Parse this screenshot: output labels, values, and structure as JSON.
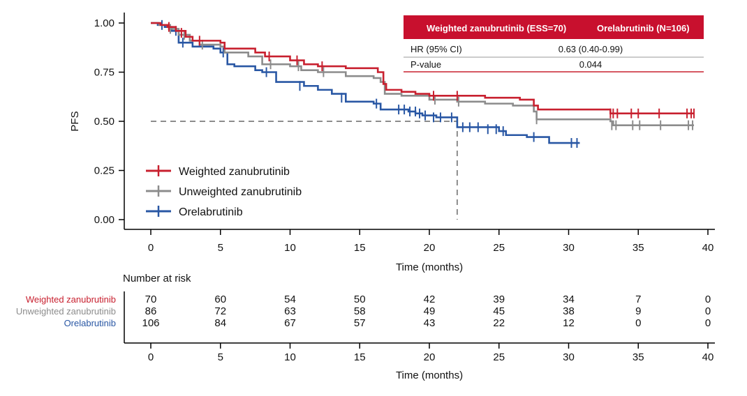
{
  "chart_data": {
    "type": "line",
    "subtype": "kaplan-meier",
    "ylabel": "PFS",
    "xlabel": "Time (months)",
    "xlim": [
      0,
      40
    ],
    "ylim": [
      0,
      1
    ],
    "x_ticks": [
      "0",
      "5",
      "10",
      "15",
      "20",
      "25",
      "30",
      "35",
      "40"
    ],
    "y_ticks": [
      "0.00",
      "0.25",
      "0.50",
      "0.75",
      "1.00"
    ],
    "median_line": {
      "y": 0.5,
      "x": 22.0
    },
    "legend": {
      "placement": "bottom-left"
    },
    "series": [
      {
        "name": "Weighted zanubrutinib",
        "color": "#c8202f",
        "steps": [
          [
            0,
            1.0
          ],
          [
            0.7,
            0.99
          ],
          [
            1.2,
            0.98
          ],
          [
            1.8,
            0.96
          ],
          [
            2.5,
            0.93
          ],
          [
            3,
            0.91
          ],
          [
            5,
            0.9
          ],
          [
            5.3,
            0.87
          ],
          [
            7.5,
            0.85
          ],
          [
            8.2,
            0.83
          ],
          [
            10,
            0.81
          ],
          [
            11,
            0.79
          ],
          [
            12,
            0.78
          ],
          [
            14,
            0.77
          ],
          [
            16.3,
            0.75
          ],
          [
            16.7,
            0.69
          ],
          [
            16.9,
            0.66
          ],
          [
            18,
            0.65
          ],
          [
            19,
            0.64
          ],
          [
            20,
            0.63
          ],
          [
            21.5,
            0.63
          ],
          [
            24,
            0.62
          ],
          [
            26.5,
            0.61
          ],
          [
            27.5,
            0.58
          ],
          [
            27.8,
            0.56
          ],
          [
            30,
            0.56
          ],
          [
            33,
            0.54
          ],
          [
            35,
            0.54
          ],
          [
            38,
            0.54
          ],
          [
            39,
            0.54
          ]
        ],
        "censors": [
          [
            1.3,
            0.98
          ],
          [
            2.2,
            0.95
          ],
          [
            3.5,
            0.91
          ],
          [
            8.5,
            0.83
          ],
          [
            10.5,
            0.81
          ],
          [
            12.3,
            0.78
          ],
          [
            20.3,
            0.63
          ],
          [
            22,
            0.63
          ],
          [
            33,
            0.54
          ],
          [
            33.2,
            0.54
          ],
          [
            33.5,
            0.54
          ],
          [
            34.5,
            0.54
          ],
          [
            35,
            0.54
          ],
          [
            36.5,
            0.54
          ],
          [
            38.5,
            0.54
          ],
          [
            38.8,
            0.54
          ],
          [
            39,
            0.54
          ]
        ],
        "risk": [
          "70",
          "60",
          "54",
          "50",
          "42",
          "39",
          "34",
          "7",
          "0"
        ]
      },
      {
        "name": "Unweighted zanubrutinib",
        "color": "#8c8c8c",
        "steps": [
          [
            0,
            1.0
          ],
          [
            0.6,
            0.99
          ],
          [
            1.3,
            0.97
          ],
          [
            2,
            0.94
          ],
          [
            2.8,
            0.91
          ],
          [
            3.5,
            0.89
          ],
          [
            5,
            0.88
          ],
          [
            5.3,
            0.85
          ],
          [
            7,
            0.83
          ],
          [
            8,
            0.79
          ],
          [
            10,
            0.78
          ],
          [
            10.8,
            0.76
          ],
          [
            12,
            0.75
          ],
          [
            14,
            0.73
          ],
          [
            16,
            0.72
          ],
          [
            16.5,
            0.7
          ],
          [
            16.8,
            0.64
          ],
          [
            18,
            0.63
          ],
          [
            20,
            0.61
          ],
          [
            22,
            0.6
          ],
          [
            24,
            0.59
          ],
          [
            26,
            0.58
          ],
          [
            27.5,
            0.55
          ],
          [
            27.7,
            0.51
          ],
          [
            30,
            0.51
          ],
          [
            33,
            0.5
          ],
          [
            33.2,
            0.48
          ],
          [
            35,
            0.48
          ],
          [
            39,
            0.48
          ]
        ],
        "censors": [
          [
            1.4,
            0.97
          ],
          [
            2.4,
            0.94
          ],
          [
            3.7,
            0.89
          ],
          [
            8.6,
            0.79
          ],
          [
            10.6,
            0.78
          ],
          [
            12.4,
            0.75
          ],
          [
            20.4,
            0.61
          ],
          [
            22.1,
            0.6
          ],
          [
            27.7,
            0.51
          ],
          [
            33.1,
            0.48
          ],
          [
            33.4,
            0.48
          ],
          [
            34.6,
            0.48
          ],
          [
            35.1,
            0.48
          ],
          [
            36.6,
            0.48
          ],
          [
            38.6,
            0.48
          ],
          [
            38.9,
            0.48
          ]
        ],
        "risk": [
          "86",
          "72",
          "63",
          "58",
          "49",
          "45",
          "38",
          "9",
          "0"
        ]
      },
      {
        "name": "Orelabrutinib",
        "color": "#2957a4",
        "steps": [
          [
            0,
            1.0
          ],
          [
            0.5,
            0.99
          ],
          [
            1,
            0.98
          ],
          [
            1.5,
            0.96
          ],
          [
            2,
            0.9
          ],
          [
            3,
            0.88
          ],
          [
            4.5,
            0.87
          ],
          [
            5,
            0.85
          ],
          [
            5.5,
            0.79
          ],
          [
            6,
            0.78
          ],
          [
            7.5,
            0.76
          ],
          [
            8,
            0.75
          ],
          [
            9,
            0.7
          ],
          [
            11,
            0.68
          ],
          [
            12,
            0.66
          ],
          [
            13,
            0.64
          ],
          [
            14,
            0.6
          ],
          [
            15,
            0.6
          ],
          [
            16,
            0.59
          ],
          [
            16.5,
            0.56
          ],
          [
            18.5,
            0.55
          ],
          [
            19,
            0.54
          ],
          [
            19.5,
            0.53
          ],
          [
            20.5,
            0.52
          ],
          [
            21,
            0.52
          ],
          [
            22,
            0.47
          ],
          [
            25,
            0.45
          ],
          [
            25.5,
            0.43
          ],
          [
            27,
            0.42
          ],
          [
            28.5,
            0.42
          ],
          [
            28.6,
            0.39
          ],
          [
            30.8,
            0.39
          ]
        ],
        "censors": [
          [
            0.8,
            0.99
          ],
          [
            1.8,
            0.96
          ],
          [
            2.3,
            0.9
          ],
          [
            5.2,
            0.85
          ],
          [
            8.3,
            0.75
          ],
          [
            10.7,
            0.68
          ],
          [
            13.7,
            0.62
          ],
          [
            16.2,
            0.59
          ],
          [
            17.8,
            0.56
          ],
          [
            18.2,
            0.56
          ],
          [
            18.6,
            0.55
          ],
          [
            19,
            0.55
          ],
          [
            19.3,
            0.54
          ],
          [
            19.7,
            0.53
          ],
          [
            20.3,
            0.52
          ],
          [
            20.8,
            0.52
          ],
          [
            21.6,
            0.52
          ],
          [
            22.4,
            0.47
          ],
          [
            22.9,
            0.47
          ],
          [
            23.5,
            0.47
          ],
          [
            24.2,
            0.46
          ],
          [
            24.8,
            0.46
          ],
          [
            25.3,
            0.45
          ],
          [
            27.5,
            0.42
          ],
          [
            30.2,
            0.39
          ],
          [
            30.6,
            0.39
          ]
        ],
        "risk": [
          "106",
          "84",
          "67",
          "57",
          "43",
          "22",
          "12",
          "0",
          "0"
        ]
      }
    ],
    "hr_table": {
      "header_weighted": "Weighted zanubrutinib (ESS=70)",
      "header_comparator": "Orelabrutinib (N=106)",
      "header_bg": "#c8102e",
      "rows": [
        {
          "label": "HR (95% CI)",
          "value": "0.63 (0.40-0.99)"
        },
        {
          "label": "P-value",
          "value": "0.044"
        }
      ]
    },
    "risk_table": {
      "title": "Number at risk",
      "xlabel": "Time (months)"
    }
  }
}
